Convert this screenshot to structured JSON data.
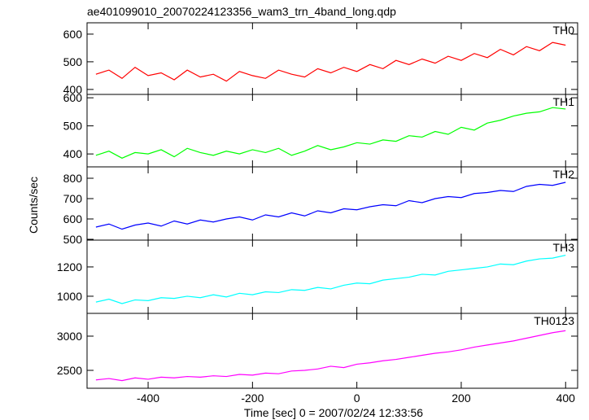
{
  "chart_data": [
    {
      "type": "line",
      "title": "ae401099010_20070224123356_wam3_trn_4band_long.qdp",
      "y_label": "Counts/sec",
      "x": [
        -500,
        -475,
        -450,
        -425,
        -400,
        -375,
        -350,
        -325,
        -300,
        -275,
        -250,
        -225,
        -200,
        -175,
        -150,
        -125,
        -100,
        -75,
        -50,
        -25,
        0,
        25,
        50,
        75,
        100,
        125,
        150,
        175,
        200,
        225,
        250,
        275,
        300,
        325,
        350,
        375,
        400
      ],
      "series": [
        {
          "name": "TH0",
          "color": "#ff0000",
          "values": [
            455,
            470,
            440,
            480,
            450,
            460,
            435,
            470,
            445,
            455,
            430,
            465,
            450,
            440,
            470,
            455,
            445,
            475,
            460,
            480,
            465,
            490,
            475,
            505,
            490,
            510,
            495,
            520,
            505,
            530,
            515,
            545,
            525,
            555,
            540,
            570,
            560
          ]
        }
      ],
      "xlim": [
        -517,
        423
      ],
      "xticks": [
        -400,
        -200,
        0,
        200,
        400
      ],
      "ylim": [
        382,
        641
      ],
      "yticks": [
        400,
        500,
        600
      ]
    },
    {
      "type": "line",
      "x": [
        -500,
        -475,
        -450,
        -425,
        -400,
        -375,
        -350,
        -325,
        -300,
        -275,
        -250,
        -225,
        -200,
        -175,
        -150,
        -125,
        -100,
        -75,
        -50,
        -25,
        0,
        25,
        50,
        75,
        100,
        125,
        150,
        175,
        200,
        225,
        250,
        275,
        300,
        325,
        350,
        375,
        400
      ],
      "series": [
        {
          "name": "TH1",
          "color": "#00ff00",
          "values": [
            395,
            410,
            385,
            405,
            400,
            415,
            390,
            420,
            405,
            395,
            410,
            400,
            415,
            405,
            420,
            395,
            410,
            430,
            415,
            425,
            440,
            435,
            450,
            445,
            465,
            460,
            480,
            470,
            495,
            485,
            510,
            520,
            535,
            545,
            550,
            565,
            560
          ]
        }
      ],
      "xlim": [
        -517,
        423
      ],
      "xticks": [
        -400,
        -200,
        0,
        200,
        400
      ],
      "ylim": [
        354,
        612
      ],
      "yticks": [
        400,
        500,
        600
      ]
    },
    {
      "type": "line",
      "x": [
        -500,
        -475,
        -450,
        -425,
        -400,
        -375,
        -350,
        -325,
        -300,
        -275,
        -250,
        -225,
        -200,
        -175,
        -150,
        -125,
        -100,
        -75,
        -50,
        -25,
        0,
        25,
        50,
        75,
        100,
        125,
        150,
        175,
        200,
        225,
        250,
        275,
        300,
        325,
        350,
        375,
        400
      ],
      "series": [
        {
          "name": "TH2",
          "color": "#0000ff",
          "values": [
            560,
            575,
            550,
            570,
            580,
            565,
            590,
            575,
            595,
            585,
            600,
            610,
            595,
            620,
            610,
            630,
            615,
            640,
            630,
            650,
            645,
            660,
            670,
            665,
            690,
            680,
            700,
            710,
            705,
            725,
            730,
            740,
            735,
            760,
            770,
            765,
            780
          ]
        }
      ],
      "xlim": [
        -517,
        423
      ],
      "xticks": [
        -400,
        -200,
        0,
        200,
        400
      ],
      "ylim": [
        496,
        856
      ],
      "yticks": [
        500,
        600,
        700,
        800
      ]
    },
    {
      "type": "line",
      "x": [
        -500,
        -475,
        -450,
        -425,
        -400,
        -375,
        -350,
        -325,
        -300,
        -275,
        -250,
        -225,
        -200,
        -175,
        -150,
        -125,
        -100,
        -75,
        -50,
        -25,
        0,
        25,
        50,
        75,
        100,
        125,
        150,
        175,
        200,
        225,
        250,
        275,
        300,
        325,
        350,
        375,
        400
      ],
      "series": [
        {
          "name": "TH3",
          "color": "#00ffff",
          "values": [
            960,
            980,
            950,
            975,
            970,
            990,
            985,
            1000,
            990,
            1010,
            995,
            1020,
            1010,
            1030,
            1025,
            1045,
            1040,
            1060,
            1050,
            1075,
            1090,
            1085,
            1110,
            1120,
            1130,
            1150,
            1145,
            1170,
            1180,
            1190,
            1200,
            1220,
            1215,
            1240,
            1255,
            1260,
            1280
          ]
        }
      ],
      "xlim": [
        -517,
        423
      ],
      "xticks": [
        -400,
        -200,
        0,
        200,
        400
      ],
      "ylim": [
        883,
        1383
      ],
      "yticks": [
        1000,
        1200
      ]
    },
    {
      "type": "line",
      "x_label": "Time [sec] 0 = 2007/02/24 12:33:56",
      "x": [
        -500,
        -475,
        -450,
        -425,
        -400,
        -375,
        -350,
        -325,
        -300,
        -275,
        -250,
        -225,
        -200,
        -175,
        -150,
        -125,
        -100,
        -75,
        -50,
        -25,
        0,
        25,
        50,
        75,
        100,
        125,
        150,
        175,
        200,
        225,
        250,
        275,
        300,
        325,
        350,
        375,
        400
      ],
      "series": [
        {
          "name": "TH0123",
          "color": "#ff00ff",
          "values": [
            2360,
            2380,
            2350,
            2390,
            2370,
            2400,
            2390,
            2410,
            2400,
            2420,
            2410,
            2440,
            2430,
            2460,
            2450,
            2490,
            2500,
            2520,
            2560,
            2540,
            2590,
            2610,
            2640,
            2660,
            2690,
            2720,
            2750,
            2770,
            2800,
            2840,
            2870,
            2900,
            2930,
            2970,
            3010,
            3050,
            3080
          ]
        }
      ],
      "xlim": [
        -517,
        423
      ],
      "xticks": [
        -400,
        -200,
        0,
        200,
        400
      ],
      "ylim": [
        2238,
        3333
      ],
      "yticks": [
        2500,
        3000
      ]
    }
  ]
}
